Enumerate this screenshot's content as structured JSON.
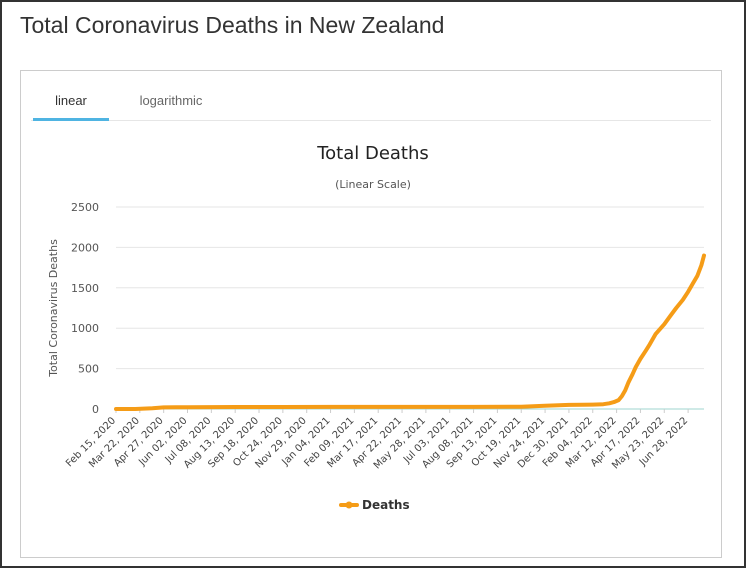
{
  "page": {
    "title": "Total Coronavirus Deaths in New Zealand"
  },
  "tabs": [
    {
      "label": "linear",
      "active": true
    },
    {
      "label": "logarithmic",
      "active": false
    }
  ],
  "colors": {
    "accent": "#4fb4e2",
    "series": "#f59c17",
    "grid": "#e6e6e6",
    "baseline": "#9fd4cf"
  },
  "chart_data": {
    "type": "line",
    "title": "Total Deaths",
    "subtitle": "(Linear Scale)",
    "ylabel": "Total Coronavirus Deaths",
    "xlabel": "",
    "ylim": [
      0,
      2500
    ],
    "yticks": [
      0,
      500,
      1000,
      1500,
      2000,
      2500
    ],
    "grid": true,
    "legend_position": "bottom-center",
    "categories": [
      "Feb 15, 2020",
      "Mar 22, 2020",
      "Apr 27, 2020",
      "Jun 02, 2020",
      "Jul 08, 2020",
      "Aug 13, 2020",
      "Sep 18, 2020",
      "Oct 24, 2020",
      "Nov 29, 2020",
      "Jan 04, 2021",
      "Feb 09, 2021",
      "Mar 17, 2021",
      "Apr 22, 2021",
      "May 28, 2021",
      "Jul 03, 2021",
      "Aug 08, 2021",
      "Sep 13, 2021",
      "Oct 19, 2021",
      "Nov 24, 2021",
      "Dec 30, 2021",
      "Feb 04, 2022",
      "Mar 12, 2022",
      "Apr 17, 2022",
      "May 23, 2022",
      "Jun 28, 2022"
    ],
    "series": [
      {
        "name": "Deaths",
        "x": [
          "2020-02-15",
          "2020-03-15",
          "2020-04-10",
          "2020-04-27",
          "2020-05-15",
          "2020-06-02",
          "2020-08-13",
          "2020-10-24",
          "2021-01-04",
          "2021-03-17",
          "2021-05-28",
          "2021-08-08",
          "2021-10-19",
          "2021-11-24",
          "2021-12-30",
          "2022-01-20",
          "2022-02-04",
          "2022-02-20",
          "2022-03-01",
          "2022-03-08",
          "2022-03-15",
          "2022-03-20",
          "2022-03-25",
          "2022-03-30",
          "2022-04-05",
          "2022-04-10",
          "2022-04-17",
          "2022-04-25",
          "2022-05-01",
          "2022-05-10",
          "2022-05-23",
          "2022-06-01",
          "2022-06-10",
          "2022-06-20",
          "2022-06-28",
          "2022-07-05",
          "2022-07-12",
          "2022-07-18",
          "2022-07-22"
        ],
        "values": [
          0,
          0,
          10,
          20,
          22,
          22,
          25,
          25,
          26,
          26,
          26,
          26,
          28,
          40,
          51,
          52,
          55,
          60,
          70,
          85,
          110,
          160,
          230,
          330,
          430,
          520,
          620,
          720,
          800,
          930,
          1050,
          1150,
          1250,
          1350,
          1450,
          1550,
          1650,
          1780,
          1900
        ]
      }
    ]
  }
}
